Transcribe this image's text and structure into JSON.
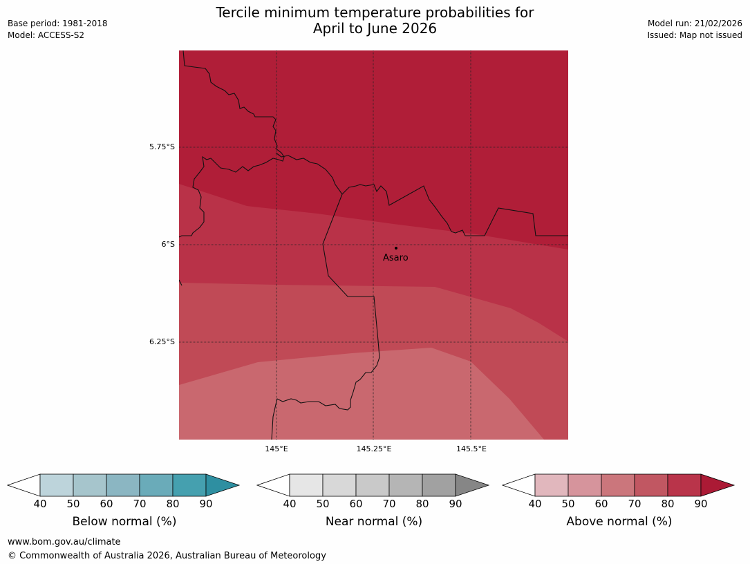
{
  "header": {
    "title_line1": "Tercile minimum temperature probabilities for",
    "title_line2": "April to June 2026",
    "base_period": "Base period: 1981-2018",
    "model": "Model: ACCESS-S2",
    "model_run": "Model run: 21/02/2026",
    "issued": "Issued: Map not issued"
  },
  "map": {
    "place_label": "Asaro",
    "lat_ticks": [
      "5.75°S",
      "6°S",
      "6.25°S"
    ],
    "lon_ticks": [
      "145°E",
      "145.25°E",
      "145.5°E"
    ],
    "colors": {
      "above_90": "#b01e38",
      "above_80": "#b93248",
      "above_70": "#c04a56",
      "above_60": "#c9686f"
    }
  },
  "legends": [
    {
      "title": "Below normal (%)",
      "ticks": [
        "40",
        "50",
        "60",
        "70",
        "80",
        "90"
      ],
      "colors": [
        "#ffffff",
        "#bdd4db",
        "#a6c5cc",
        "#8bb6c2",
        "#6aabb9",
        "#45a0af",
        "#2e8fa1"
      ]
    },
    {
      "title": "Near normal (%)",
      "ticks": [
        "40",
        "50",
        "60",
        "70",
        "80",
        "90"
      ],
      "colors": [
        "#ffffff",
        "#e6e6e6",
        "#d8d8d8",
        "#c9c9c9",
        "#b5b5b5",
        "#a1a1a1",
        "#868686"
      ]
    },
    {
      "title": "Above normal (%)",
      "ticks": [
        "40",
        "50",
        "60",
        "70",
        "80",
        "90"
      ],
      "colors": [
        "#ffffff",
        "#e1b7bd",
        "#d6949c",
        "#cb767c",
        "#c15762",
        "#b9344a",
        "#ab1a35"
      ]
    }
  ],
  "footer": {
    "url": "www.bom.gov.au/climate",
    "copyright": "© Commonwealth of Australia 2026, Australian Bureau of Meteorology"
  }
}
